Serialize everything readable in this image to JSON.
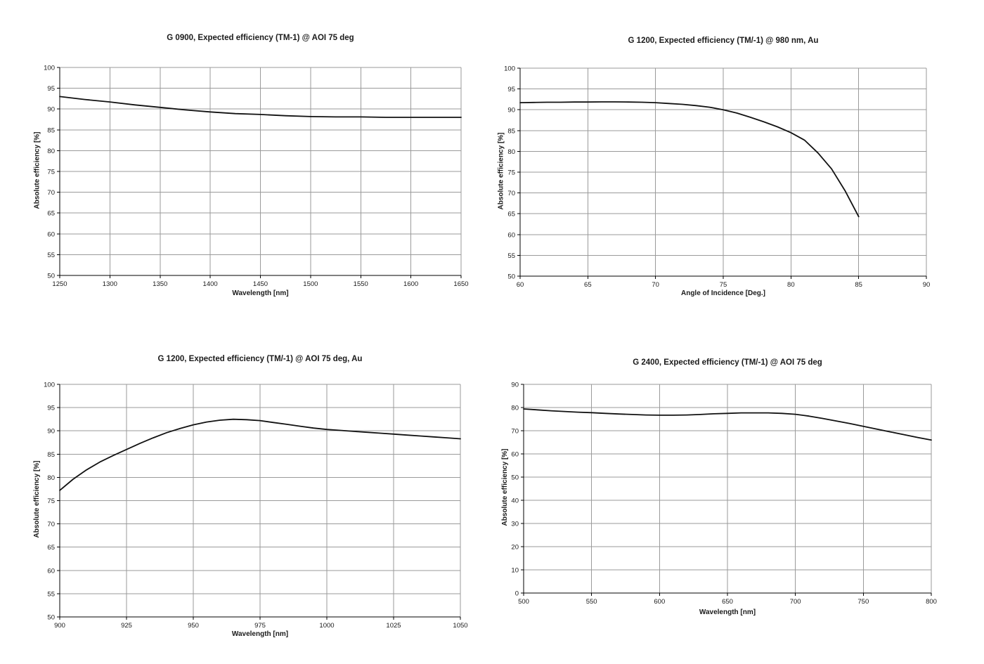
{
  "page": {
    "background": "#ffffff"
  },
  "chart_data": [
    {
      "type": "line",
      "title": "G 0900, Expected efficiency (TM-1) @ AOI 75 deg",
      "xlabel": "Wavelength [nm]",
      "ylabel": "Absolute efficiency [%]",
      "xlim": [
        1250,
        1650
      ],
      "ylim": [
        50,
        100
      ],
      "xticks": [
        1250,
        1300,
        1350,
        1400,
        1450,
        1500,
        1550,
        1600,
        1650
      ],
      "yticks": [
        50,
        55,
        60,
        65,
        70,
        75,
        80,
        85,
        90,
        95,
        100
      ],
      "grid": true,
      "legend": "none",
      "line_color": "#111111",
      "grid_color": "#9a9a9a",
      "series": [
        {
          "name": "Expected efficiency",
          "x": [
            1250,
            1275,
            1300,
            1325,
            1350,
            1375,
            1400,
            1425,
            1450,
            1475,
            1500,
            1525,
            1550,
            1575,
            1600,
            1625,
            1650
          ],
          "y": [
            93.0,
            92.3,
            91.7,
            91.0,
            90.4,
            89.8,
            89.3,
            88.9,
            88.7,
            88.4,
            88.2,
            88.1,
            88.1,
            88.0,
            88.0,
            88.0,
            88.0
          ]
        }
      ]
    },
    {
      "type": "line",
      "title": "G 1200, Expected efficiency (TM/-1) @ 980 nm, Au",
      "xlabel": "Angle of Incidence [Deg.]",
      "ylabel": "Absolute efficiency [%]",
      "xlim": [
        60,
        90
      ],
      "ylim": [
        50,
        100
      ],
      "xticks": [
        60,
        65,
        70,
        75,
        80,
        85,
        90
      ],
      "yticks": [
        50,
        55,
        60,
        65,
        70,
        75,
        80,
        85,
        90,
        95,
        100
      ],
      "grid": true,
      "legend": "none",
      "line_color": "#111111",
      "grid_color": "#9a9a9a",
      "series": [
        {
          "name": "Expected efficiency",
          "x": [
            60,
            61,
            62,
            63,
            64,
            65,
            66,
            67,
            68,
            69,
            70,
            71,
            72,
            73,
            74,
            75,
            76,
            77,
            78,
            79,
            80,
            81,
            82,
            83,
            84,
            85
          ],
          "y": [
            91.7,
            91.75,
            91.8,
            91.8,
            91.85,
            91.85,
            91.9,
            91.9,
            91.85,
            91.8,
            91.7,
            91.5,
            91.3,
            91.0,
            90.6,
            90.0,
            89.2,
            88.2,
            87.1,
            85.9,
            84.5,
            82.7,
            79.6,
            75.8,
            70.5,
            64.3
          ]
        }
      ]
    },
    {
      "type": "line",
      "title": "G 1200, Expected efficiency (TM/-1) @ AOI 75 deg, Au",
      "xlabel": "Wavelength [nm]",
      "ylabel": "Absolute efficiency [%]",
      "xlim": [
        900,
        1050
      ],
      "ylim": [
        50,
        100
      ],
      "xticks": [
        900,
        925,
        950,
        975,
        1000,
        1025,
        1050
      ],
      "yticks": [
        50,
        55,
        60,
        65,
        70,
        75,
        80,
        85,
        90,
        95,
        100
      ],
      "grid": true,
      "legend": "none",
      "line_color": "#111111",
      "grid_color": "#9a9a9a",
      "series": [
        {
          "name": "Expected efficiency",
          "x": [
            900,
            905,
            910,
            915,
            920,
            925,
            930,
            935,
            940,
            945,
            950,
            955,
            960,
            965,
            970,
            975,
            980,
            985,
            990,
            995,
            1000,
            1005,
            1010,
            1015,
            1020,
            1025,
            1030,
            1035,
            1040,
            1045,
            1050
          ],
          "y": [
            77.2,
            79.6,
            81.6,
            83.3,
            84.7,
            86.0,
            87.3,
            88.5,
            89.6,
            90.5,
            91.3,
            91.9,
            92.3,
            92.5,
            92.4,
            92.2,
            91.8,
            91.4,
            91.0,
            90.6,
            90.3,
            90.1,
            89.9,
            89.7,
            89.5,
            89.3,
            89.1,
            88.9,
            88.7,
            88.5,
            88.3
          ]
        }
      ]
    },
    {
      "type": "line",
      "title": "G 2400, Expected efficiency (TM/-1) @ AOI 75 deg",
      "xlabel": "Wavelength [nm]",
      "ylabel": "Absolute efficiency [%]",
      "xlim": [
        500,
        800
      ],
      "ylim": [
        0,
        90
      ],
      "xticks": [
        500,
        550,
        600,
        650,
        700,
        750,
        800
      ],
      "yticks": [
        0,
        10,
        20,
        30,
        40,
        50,
        60,
        70,
        80,
        90
      ],
      "grid": true,
      "legend": "none",
      "line_color": "#111111",
      "grid_color": "#9a9a9a",
      "series": [
        {
          "name": "Expected efficiency",
          "x": [
            500,
            510,
            520,
            530,
            540,
            550,
            560,
            570,
            580,
            590,
            600,
            610,
            620,
            630,
            640,
            650,
            660,
            670,
            680,
            690,
            700,
            710,
            720,
            730,
            740,
            750,
            760,
            770,
            780,
            790,
            800
          ],
          "y": [
            79.4,
            79.0,
            78.6,
            78.3,
            78.0,
            77.8,
            77.5,
            77.2,
            77.0,
            76.8,
            76.7,
            76.7,
            76.8,
            77.0,
            77.3,
            77.5,
            77.7,
            77.7,
            77.7,
            77.5,
            77.1,
            76.3,
            75.3,
            74.2,
            73.1,
            71.9,
            70.7,
            69.5,
            68.3,
            67.1,
            66.0
          ]
        }
      ]
    }
  ]
}
